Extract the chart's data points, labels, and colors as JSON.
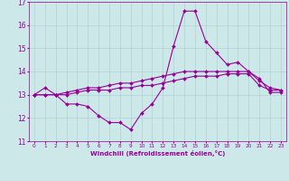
{
  "xlabel": "Windchill (Refroidissement éolien,°C)",
  "background_color": "#cce8e8",
  "line_color": "#990099",
  "x_hours": [
    0,
    1,
    2,
    3,
    4,
    5,
    6,
    7,
    8,
    9,
    10,
    11,
    12,
    13,
    14,
    15,
    16,
    17,
    18,
    19,
    20,
    21,
    22,
    23
  ],
  "xlim": [
    -0.5,
    23.5
  ],
  "ylim": [
    11,
    17
  ],
  "yticks": [
    11,
    12,
    13,
    14,
    15,
    16,
    17
  ],
  "series": [
    [
      13.0,
      13.3,
      13.0,
      12.6,
      12.6,
      12.5,
      12.1,
      11.8,
      11.8,
      11.5,
      12.2,
      12.6,
      13.3,
      15.1,
      16.6,
      16.6,
      15.3,
      14.8,
      14.3,
      14.4,
      14.0,
      13.7,
      13.1,
      13.1
    ],
    [
      13.0,
      13.0,
      13.0,
      13.0,
      13.1,
      13.2,
      13.2,
      13.2,
      13.3,
      13.3,
      13.4,
      13.4,
      13.5,
      13.6,
      13.7,
      13.8,
      13.8,
      13.8,
      13.9,
      13.9,
      13.9,
      13.4,
      13.2,
      13.2
    ],
    [
      13.0,
      13.0,
      13.0,
      13.1,
      13.2,
      13.3,
      13.3,
      13.4,
      13.5,
      13.5,
      13.6,
      13.7,
      13.8,
      13.9,
      14.0,
      14.0,
      14.0,
      14.0,
      14.0,
      14.0,
      14.0,
      13.6,
      13.3,
      13.2
    ]
  ]
}
